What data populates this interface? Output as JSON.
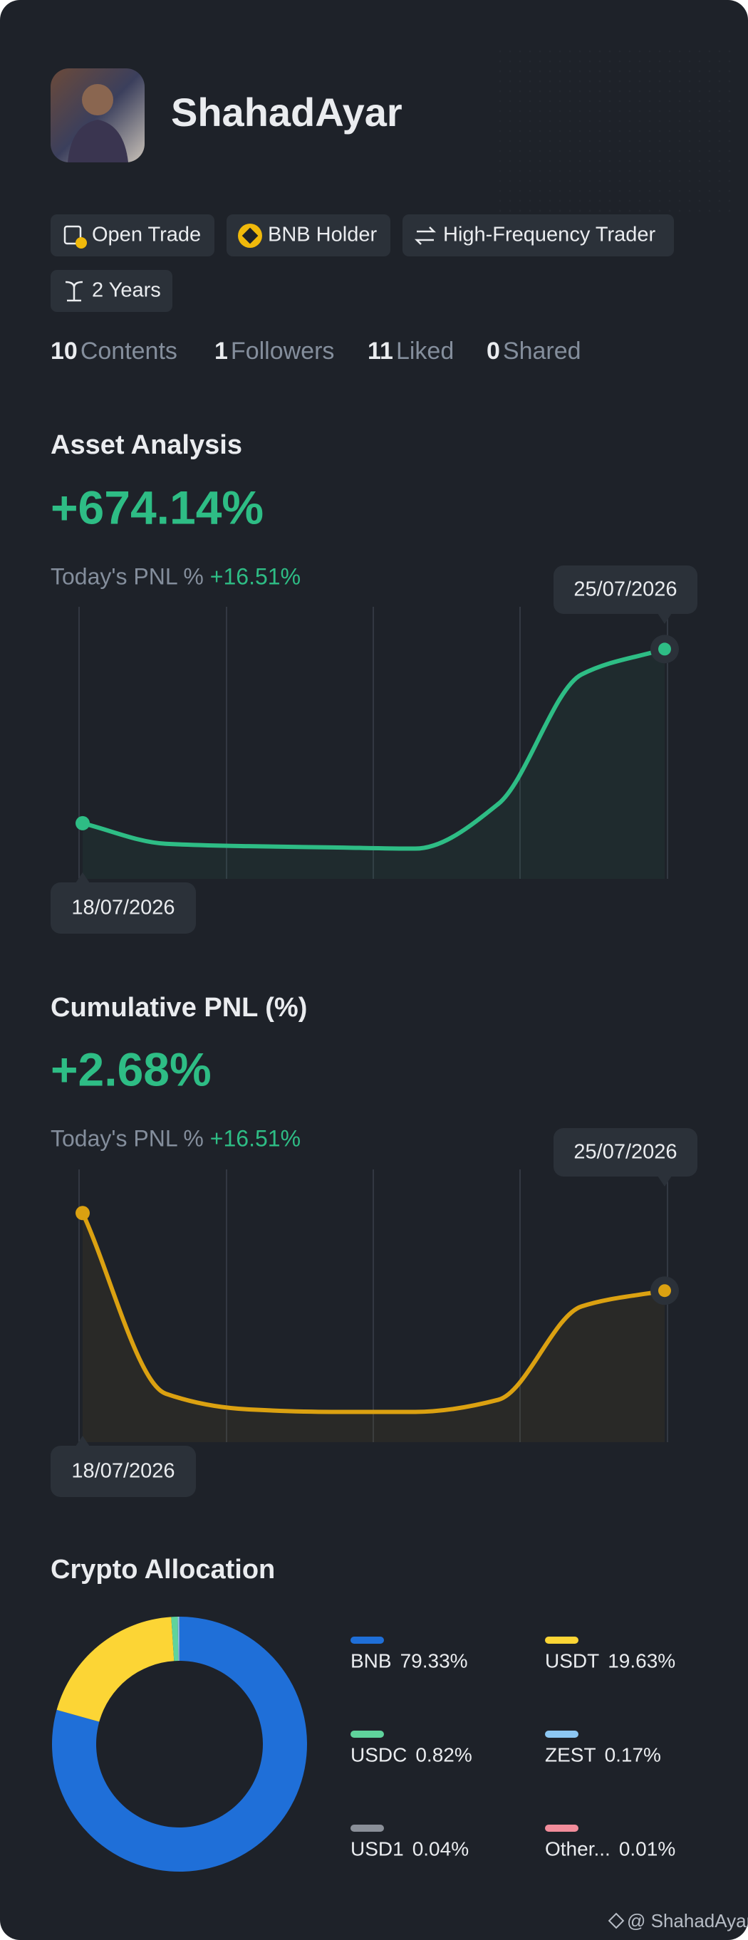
{
  "profile": {
    "name": "ShahadAyar"
  },
  "badges": [
    "Open Trade",
    "BNB Holder",
    "High-Frequency Trader",
    "2 Years"
  ],
  "stats": [
    {
      "count": 10,
      "label": "Contents"
    },
    {
      "count": 1,
      "label": "Followers"
    },
    {
      "count": 11,
      "label": "Liked"
    },
    {
      "count": 0,
      "label": "Shared"
    }
  ],
  "chart_data": [
    {
      "type": "line",
      "title": "Asset Analysis",
      "headline": "+674.14%",
      "pnl_label": "Today's PNL %",
      "pnl_value": "+16.51%",
      "categories": [
        "18/07/2026",
        null,
        null,
        null,
        null,
        null,
        null,
        "25/07/2026"
      ],
      "series": [
        {
          "color": "#2ebd85",
          "values": [
            21,
            4,
            2,
            1,
            0,
            37,
            144,
            165
          ]
        }
      ],
      "ylim": [
        -25,
        200
      ]
    },
    {
      "type": "line",
      "title": "Cumulative PNL (%)",
      "headline": "+2.68%",
      "pnl_label": "Today's PNL %",
      "pnl_value": "+16.51%",
      "categories": [
        "18/07/2026",
        null,
        null,
        null,
        null,
        null,
        null,
        "25/07/2026"
      ],
      "series": [
        {
          "color": "#dba111",
          "values": [
            164,
            15,
            2,
            0,
            0,
            10,
            87,
            100
          ]
        }
      ],
      "ylim": [
        -25,
        200
      ]
    },
    {
      "type": "pie",
      "title": "Crypto Allocation",
      "donut": true,
      "categories": [
        "BNB",
        "USDT",
        "USDC",
        "ZEST",
        "USD1",
        "Other..."
      ],
      "values": [
        79.33,
        19.63,
        0.82,
        0.17,
        0.04,
        0.01
      ],
      "value_labels": [
        "79.33%",
        "19.63%",
        "0.82%",
        "0.17%",
        "0.04%",
        "0.01%"
      ],
      "colors": [
        "#1f6fd8",
        "#fcd535",
        "#5fd39c",
        "#8cc7f3",
        "#8a8f98",
        "#f28d9b"
      ]
    }
  ],
  "watermark": "@ ShahadAyar"
}
